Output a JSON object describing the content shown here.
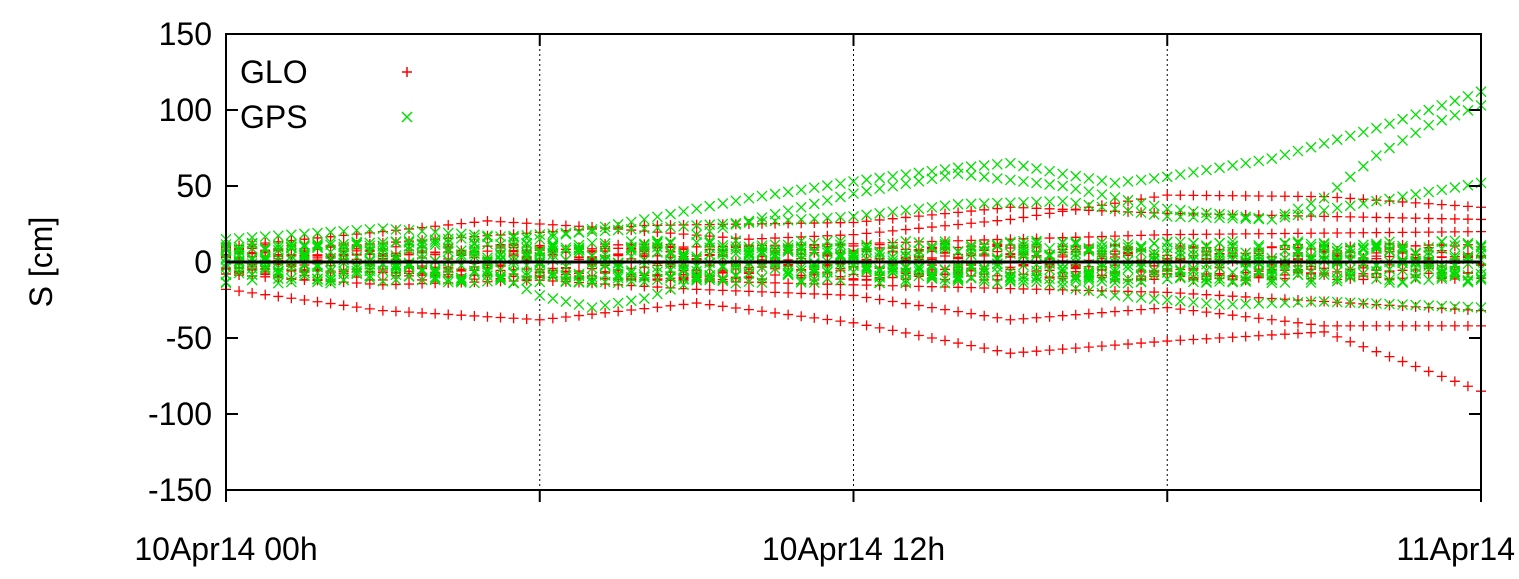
{
  "chart_data": {
    "type": "scatter",
    "title": "",
    "xlabel": "",
    "ylabel": "S [cm]",
    "ylim": [
      -150,
      150
    ],
    "yticks": [
      150,
      100,
      50,
      0,
      -50,
      -100,
      -150
    ],
    "xlim": [
      "2014-04-10T00:00",
      "2014-04-11T00:00"
    ],
    "xticks": [
      {
        "value": "2014-04-10T00:00",
        "label": "10Apr14 00h"
      },
      {
        "value": "2014-04-10T06:00",
        "label": ""
      },
      {
        "value": "2014-04-10T12:00",
        "label": "10Apr14 12h"
      },
      {
        "value": "2014-04-10T18:00",
        "label": ""
      },
      {
        "value": "2014-04-11T00:00",
        "label": "11Apr14"
      }
    ],
    "grid": "vertical dotted at major x ticks",
    "zero_line": true,
    "legend_position": "top-left",
    "series": [
      {
        "name": "GLO",
        "marker": "+",
        "color": "#ff0000",
        "tracks": [
          {
            "points": [
              [
                "2014-04-10T00:00",
                -18
              ],
              [
                "2014-04-10T03:00",
                -32
              ],
              [
                "2014-04-10T06:00",
                -38
              ],
              [
                "2014-04-10T09:00",
                -27
              ],
              [
                "2014-04-10T12:00",
                -40
              ],
              [
                "2014-04-10T15:00",
                -60
              ],
              [
                "2014-04-10T18:00",
                -52
              ],
              [
                "2014-04-10T21:00",
                -46
              ],
              [
                "2014-04-11T00:00",
                -85
              ]
            ]
          },
          {
            "points": [
              [
                "2014-04-10T00:00",
                10
              ],
              [
                "2014-04-10T03:00",
                20
              ],
              [
                "2014-04-10T05:00",
                27
              ],
              [
                "2014-04-10T07:00",
                23
              ],
              [
                "2014-04-10T10:00",
                15
              ],
              [
                "2014-04-10T12:00",
                18
              ],
              [
                "2014-04-10T15:00",
                28
              ],
              [
                "2014-04-10T18:00",
                44
              ],
              [
                "2014-04-10T21:00",
                43
              ],
              [
                "2014-04-11T00:00",
                36
              ]
            ]
          },
          {
            "points": [
              [
                "2014-04-10T00:00",
                -8
              ],
              [
                "2014-04-10T03:00",
                -15
              ],
              [
                "2014-04-10T06:00",
                -12
              ],
              [
                "2014-04-10T09:00",
                -18
              ],
              [
                "2014-04-10T12:00",
                -22
              ],
              [
                "2014-04-10T15:00",
                -38
              ],
              [
                "2014-04-10T18:00",
                -30
              ],
              [
                "2014-04-10T21:00",
                -42
              ],
              [
                "2014-04-11T00:00",
                -42
              ]
            ]
          },
          {
            "points": [
              [
                "2014-04-10T00:00",
                5
              ],
              [
                "2014-04-10T04:00",
                15
              ],
              [
                "2014-04-10T08:00",
                24
              ],
              [
                "2014-04-10T12:00",
                26
              ],
              [
                "2014-04-10T15:00",
                36
              ],
              [
                "2014-04-10T18:00",
                32
              ],
              [
                "2014-04-10T21:00",
                30
              ],
              [
                "2014-04-11T00:00",
                28
              ]
            ]
          },
          {
            "points": [
              [
                "2014-04-10T00:00",
                -4
              ],
              [
                "2014-04-10T06:00",
                -10
              ],
              [
                "2014-04-10T12:00",
                -15
              ],
              [
                "2014-04-10T18:00",
                -20
              ],
              [
                "2014-04-11T00:00",
                -32
              ]
            ]
          },
          {
            "points": [
              [
                "2014-04-10T00:00",
                3
              ],
              [
                "2014-04-10T06:00",
                8
              ],
              [
                "2014-04-10T12:00",
                12
              ],
              [
                "2014-04-10T18:00",
                18
              ],
              [
                "2014-04-11T00:00",
                20
              ]
            ]
          }
        ],
        "band": [
          -12,
          12
        ]
      },
      {
        "name": "GPS",
        "marker": "×",
        "color": "#00e000",
        "tracks": [
          {
            "points": [
              [
                "2014-04-10T00:00",
                15
              ],
              [
                "2014-04-10T03:00",
                22
              ],
              [
                "2014-04-10T06:00",
                15
              ],
              [
                "2014-04-10T08:00",
                28
              ],
              [
                "2014-04-10T10:00",
                42
              ],
              [
                "2014-04-10T12:00",
                53
              ],
              [
                "2014-04-10T14:00",
                62
              ],
              [
                "2014-04-10T15:00",
                65
              ],
              [
                "2014-04-10T16:00",
                58
              ],
              [
                "2014-04-10T17:00",
                52
              ],
              [
                "2014-04-10T18:00",
                56
              ],
              [
                "2014-04-10T20:00",
                68
              ],
              [
                "2014-04-10T22:00",
                88
              ],
              [
                "2014-04-11T00:00",
                112
              ]
            ]
          },
          {
            "points": [
              [
                "2014-04-10T00:00",
                8
              ],
              [
                "2014-04-10T06:00",
                18
              ],
              [
                "2014-04-10T10:00",
                26
              ],
              [
                "2014-04-10T12:00",
                30
              ],
              [
                "2014-04-10T14:00",
                38
              ],
              [
                "2014-04-10T16:00",
                40
              ],
              [
                "2014-04-10T18:00",
                30
              ],
              [
                "2014-04-10T20:00",
                28
              ],
              [
                "2014-04-10T22:00",
                40
              ],
              [
                "2014-04-11T00:00",
                52
              ]
            ]
          },
          {
            "points": [
              [
                "2014-04-10T05:00",
                -5
              ],
              [
                "2014-04-10T06:00",
                -22
              ],
              [
                "2014-04-10T07:00",
                -30
              ],
              [
                "2014-04-10T08:00",
                -24
              ],
              [
                "2014-04-10T09:00",
                -12
              ]
            ]
          },
          {
            "points": [
              [
                "2014-04-10T15:00",
                -10
              ],
              [
                "2014-04-10T17:00",
                -22
              ],
              [
                "2014-04-10T19:00",
                -28
              ],
              [
                "2014-04-10T21:00",
                -26
              ],
              [
                "2014-04-11T00:00",
                -30
              ]
            ]
          },
          {
            "points": [
              [
                "2014-04-10T09:00",
                18
              ],
              [
                "2014-04-10T12:00",
                45
              ],
              [
                "2014-04-10T14:00",
                58
              ],
              [
                "2014-04-10T16:00",
                50
              ],
              [
                "2014-04-10T18:00",
                35
              ],
              [
                "2014-04-10T20:00",
                28
              ],
              [
                "2014-04-10T21:00",
                42
              ],
              [
                "2014-04-10T22:00",
                70
              ],
              [
                "2014-04-10T23:00",
                90
              ],
              [
                "2014-04-11T00:00",
                103
              ]
            ]
          }
        ],
        "band": [
          -14,
          14
        ]
      }
    ]
  }
}
